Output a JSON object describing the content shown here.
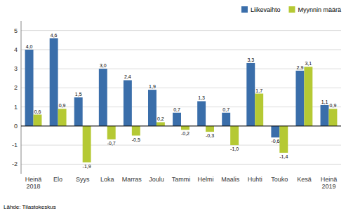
{
  "chart_data": {
    "type": "bar",
    "categories": [
      "Heinä\n2018",
      "Elo",
      "Syys",
      "Loka",
      "Marras",
      "Joulu",
      "Tammi",
      "Helmi",
      "Maalis",
      "Huhti",
      "Touko",
      "Kesä",
      "Heinä\n2019"
    ],
    "series": [
      {
        "name": "Liikevaihto",
        "color": "#3a6eaa",
        "values": [
          4.0,
          4.6,
          1.5,
          3.0,
          2.4,
          1.9,
          0.7,
          1.3,
          0.7,
          3.3,
          -0.6,
          2.9,
          1.1
        ],
        "value_labels": [
          "4,0",
          "4,6",
          "1,5",
          "3,0",
          "2,4",
          "1,9",
          "0,7",
          "1,3",
          "0,7",
          "3,3",
          "-0,6",
          "2,9",
          "1,1"
        ]
      },
      {
        "name": "Myynnin määrä",
        "color": "#b5c934",
        "values": [
          0.6,
          0.9,
          -1.9,
          -0.7,
          -0.5,
          0.2,
          -0.2,
          -0.3,
          -1.0,
          1.7,
          -1.4,
          3.1,
          0.9
        ],
        "value_labels": [
          "0,6",
          "0,9",
          "-1,9",
          "-0,7",
          "-0,5",
          "0,2",
          "-0,2",
          "-0,3",
          "-1,0",
          "1,7",
          "-1,4",
          "3,1",
          "0,9"
        ]
      }
    ],
    "ylim": [
      -2.5,
      5.5
    ],
    "yticks": [
      -2,
      -1,
      0,
      1,
      2,
      3,
      4,
      5
    ],
    "grid": true,
    "legend": "upper right",
    "data_labels": true,
    "annotations": [
      "Lähde: Tilastokeskus"
    ]
  }
}
